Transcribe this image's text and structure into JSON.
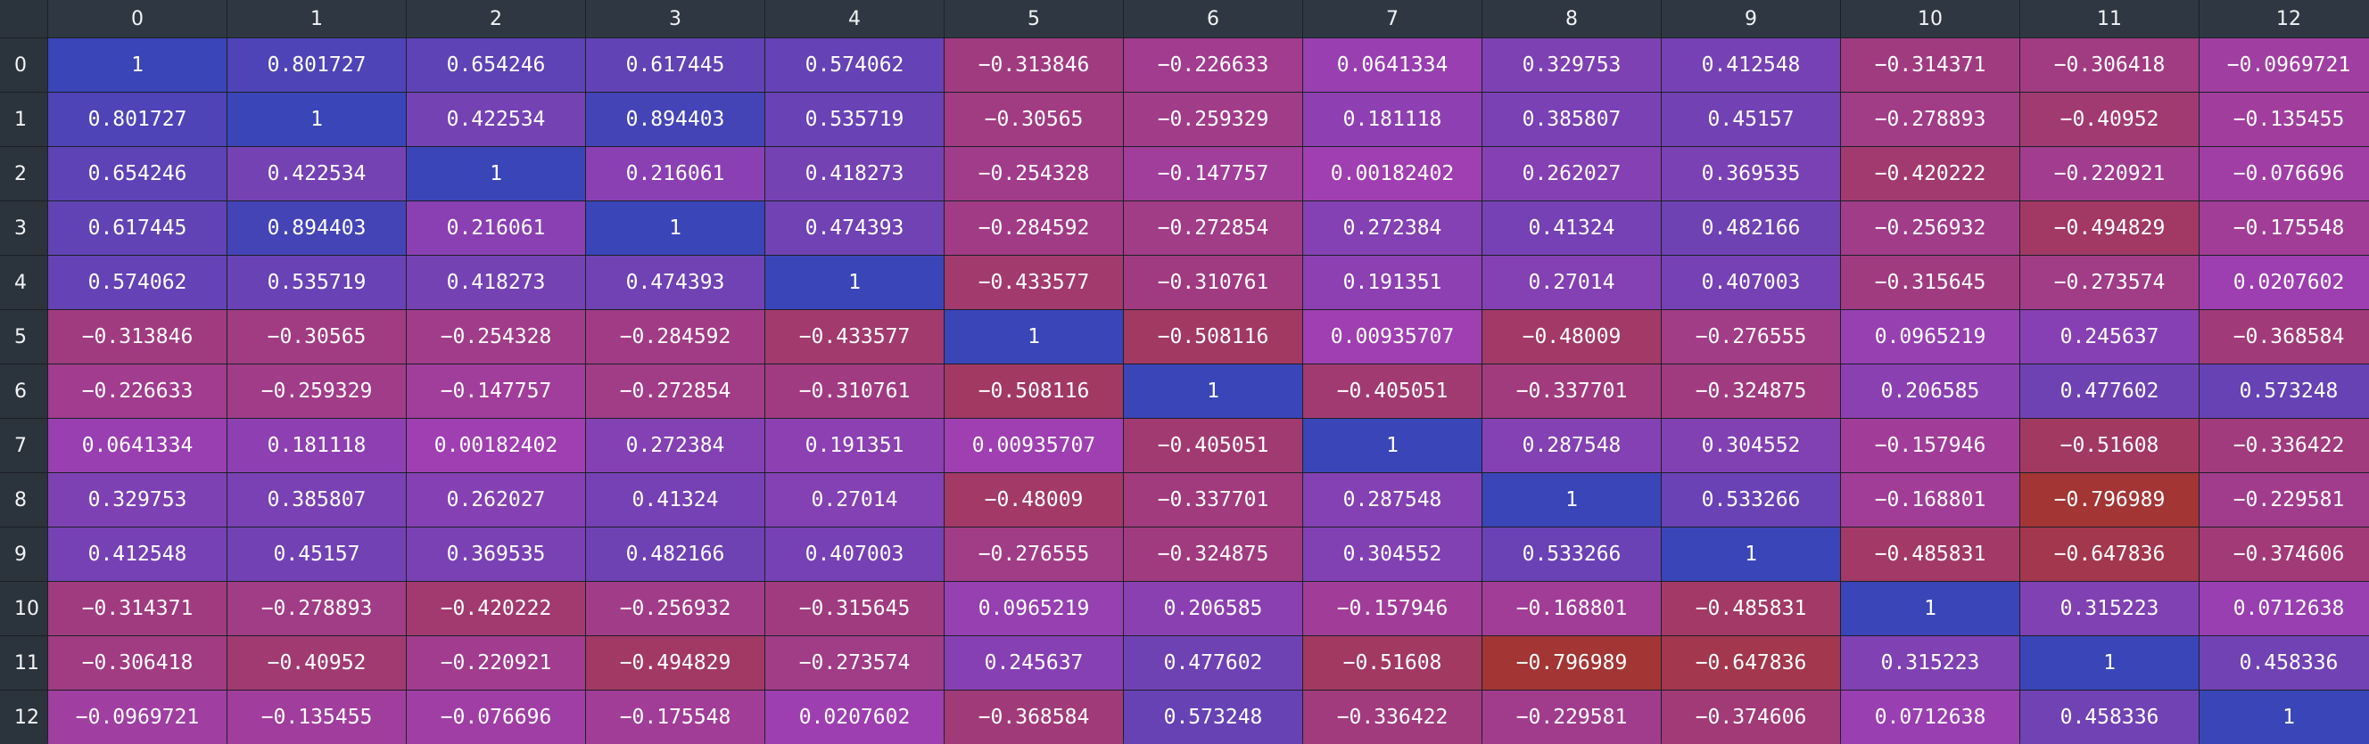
{
  "chart_data": {
    "type": "heatmap",
    "row_labels": [
      "0",
      "1",
      "2",
      "3",
      "4",
      "5",
      "6",
      "7",
      "8",
      "9",
      "10",
      "11",
      "12"
    ],
    "col_labels": [
      "0",
      "1",
      "2",
      "3",
      "4",
      "5",
      "6",
      "7",
      "8",
      "9",
      "10",
      "11",
      "12"
    ],
    "values": [
      [
        "1",
        "0.801727",
        "0.654246",
        "0.617445",
        "0.574062",
        "−0.313846",
        "−0.226633",
        "0.0641334",
        "0.329753",
        "0.412548",
        "−0.314371",
        "−0.306418",
        "−0.0969721"
      ],
      [
        "0.801727",
        "1",
        "0.422534",
        "0.894403",
        "0.535719",
        "−0.30565",
        "−0.259329",
        "0.181118",
        "0.385807",
        "0.45157",
        "−0.278893",
        "−0.40952",
        "−0.135455"
      ],
      [
        "0.654246",
        "0.422534",
        "1",
        "0.216061",
        "0.418273",
        "−0.254328",
        "−0.147757",
        "0.00182402",
        "0.262027",
        "0.369535",
        "−0.420222",
        "−0.220921",
        "−0.076696"
      ],
      [
        "0.617445",
        "0.894403",
        "0.216061",
        "1",
        "0.474393",
        "−0.284592",
        "−0.272854",
        "0.272384",
        "0.41324",
        "0.482166",
        "−0.256932",
        "−0.494829",
        "−0.175548"
      ],
      [
        "0.574062",
        "0.535719",
        "0.418273",
        "0.474393",
        "1",
        "−0.433577",
        "−0.310761",
        "0.191351",
        "0.27014",
        "0.407003",
        "−0.315645",
        "−0.273574",
        "0.0207602"
      ],
      [
        "−0.313846",
        "−0.30565",
        "−0.254328",
        "−0.284592",
        "−0.433577",
        "1",
        "−0.508116",
        "0.00935707",
        "−0.48009",
        "−0.276555",
        "0.0965219",
        "0.245637",
        "−0.368584"
      ],
      [
        "−0.226633",
        "−0.259329",
        "−0.147757",
        "−0.272854",
        "−0.310761",
        "−0.508116",
        "1",
        "−0.405051",
        "−0.337701",
        "−0.324875",
        "0.206585",
        "0.477602",
        "0.573248"
      ],
      [
        "0.0641334",
        "0.181118",
        "0.00182402",
        "0.272384",
        "0.191351",
        "0.00935707",
        "−0.405051",
        "1",
        "0.287548",
        "0.304552",
        "−0.157946",
        "−0.51608",
        "−0.336422"
      ],
      [
        "0.329753",
        "0.385807",
        "0.262027",
        "0.41324",
        "0.27014",
        "−0.48009",
        "−0.337701",
        "0.287548",
        "1",
        "0.533266",
        "−0.168801",
        "−0.796989",
        "−0.229581"
      ],
      [
        "0.412548",
        "0.45157",
        "0.369535",
        "0.482166",
        "0.407003",
        "−0.276555",
        "−0.324875",
        "0.304552",
        "0.533266",
        "1",
        "−0.485831",
        "−0.647836",
        "−0.374606"
      ],
      [
        "−0.314371",
        "−0.278893",
        "−0.420222",
        "−0.256932",
        "−0.315645",
        "0.0965219",
        "0.206585",
        "−0.157946",
        "−0.168801",
        "−0.485831",
        "1",
        "0.315223",
        "0.0712638"
      ],
      [
        "−0.306418",
        "−0.40952",
        "−0.220921",
        "−0.494829",
        "−0.273574",
        "0.245637",
        "0.477602",
        "−0.51608",
        "−0.796989",
        "−0.647836",
        "0.315223",
        "1",
        "0.458336"
      ],
      [
        "−0.0969721",
        "−0.135455",
        "−0.076696",
        "−0.175548",
        "0.0207602",
        "−0.368584",
        "0.573248",
        "−0.336422",
        "−0.229581",
        "−0.374606",
        "0.0712638",
        "0.458336",
        "1"
      ]
    ],
    "color_scale": {
      "min": -0.8,
      "max": 1,
      "low": "#a33535",
      "mid": "#a03fb1",
      "high": "#3a45b8"
    }
  }
}
